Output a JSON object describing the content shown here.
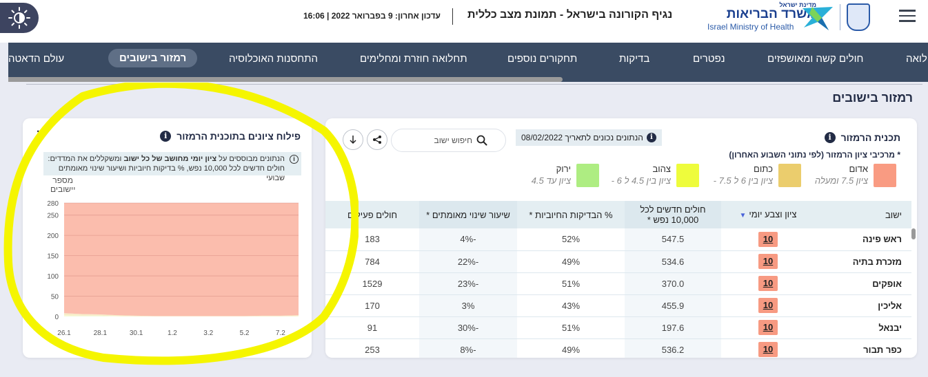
{
  "header": {
    "theme_toggle_icon": "brightness-contrast-icon",
    "last_update": "עדכון אחרון: 9 בפברואר 2022 | 16:06",
    "title": "נגיף הקורונה בישראל - תמונת מצב כללית",
    "logo": {
      "small": "מדינת ישראל",
      "big": "משרד הבריאות",
      "english": "Israel Ministry of Health"
    },
    "menu_icon": "hamburger-menu-icon"
  },
  "nav": {
    "items": [
      {
        "label": "תחלואה",
        "active": false
      },
      {
        "label": "חולים קשה ומאושפזים",
        "active": false
      },
      {
        "label": "נפטרים",
        "active": false
      },
      {
        "label": "בדיקות",
        "active": false
      },
      {
        "label": "תחקורים נוספים",
        "active": false
      },
      {
        "label": "תחלואה חוזרת ומחלימים",
        "active": false
      },
      {
        "label": "התחסנות האוכלוסיה",
        "active": false
      },
      {
        "label": "רמזור בישובים",
        "active": true
      },
      {
        "label": "עולם הדאטה",
        "active": false
      }
    ]
  },
  "section_title": "רמזור בישובים",
  "traffic_card": {
    "title": "תכנית הרמזור",
    "subnote": "* מרכיבי ציון הרמזור (לפי נתוני השבוע האחרון)",
    "date_badge": "הנתונים נכונים לתאריך 08/02/2022",
    "search_placeholder": "חיפוש ישוב",
    "share_icon": "share-icon",
    "download_icon": "download-arrow-icon",
    "legend": [
      {
        "name": "אדום",
        "range": "ציון 7.5 ומעלה",
        "color": "#f99b82"
      },
      {
        "name": "כתום",
        "range": "ציון בין 6 ל 7.5 -",
        "color": "#ebcd6d"
      },
      {
        "name": "צהוב",
        "range": "ציון בין 4.5 ל 6 -",
        "color": "#eefc3c"
      },
      {
        "name": "ירוק",
        "range": "ציון עד 4.5",
        "color": "#aeed82"
      }
    ],
    "table": {
      "headers": {
        "town": "ישוב",
        "score": "ציון וצבע יומי",
        "new_cases_line1": "חולים חדשים לכל",
        "new_cases_line2": "10,000 נפש *",
        "positive": "% הבדיקות החיוביות *",
        "change": "שיעור שינוי מאומתים *",
        "active": "חולים פעילים"
      },
      "rows": [
        {
          "town": "ראש פינה",
          "score": "10",
          "new_cases": "547.5",
          "positive": "52%",
          "change": "-4%",
          "active": "183"
        },
        {
          "town": "מזכרת בתיה",
          "score": "10",
          "new_cases": "534.6",
          "positive": "49%",
          "change": "-22%",
          "active": "784"
        },
        {
          "town": "אופקים",
          "score": "10",
          "new_cases": "370.0",
          "positive": "51%",
          "change": "-23%",
          "active": "1529"
        },
        {
          "town": "אליכין",
          "score": "10",
          "new_cases": "455.9",
          "positive": "43%",
          "change": "3%",
          "active": "170"
        },
        {
          "town": "יבנאל",
          "score": "10",
          "new_cases": "197.6",
          "positive": "51%",
          "change": "-30%",
          "active": "91"
        },
        {
          "town": "כפר תבור",
          "score": "10",
          "new_cases": "536.2",
          "positive": "49%",
          "change": "-8%",
          "active": "253"
        }
      ]
    }
  },
  "distribution_card": {
    "title": "פילוח ציונים בתוכנית הרמזור",
    "menu_icon": "kebab-menu-icon",
    "note_part1": "הנתונים מבוססים על ",
    "note_bold": "ציון יומי מחושב של כל ישוב",
    "note_part2": " ומשקללים את המדדים:",
    "note_line2": "חולים חדשים לכל 10,000 נפש, % בדיקות חיוביות ושיעור שינוי מאומתים שבועי",
    "y_label_line1": "מספר",
    "y_label_line2": "יישובים"
  },
  "chart_data": {
    "type": "area",
    "title": "פילוח ציונים בתוכנית הרמזור",
    "ylabel": "מספר יישובים",
    "xlabel": "",
    "x": [
      "26.1",
      "27.1",
      "28.1",
      "29.1",
      "30.1",
      "31.1",
      "1.2",
      "2.2",
      "3.2",
      "4.2",
      "5.2",
      "6.2",
      "7.2",
      "8.2"
    ],
    "x_tick_labels": [
      "26.1",
      "28.1",
      "30.1",
      "1.2",
      "3.2",
      "5.2",
      "7.2"
    ],
    "yticks": [
      0,
      50,
      100,
      150,
      200,
      250,
      280
    ],
    "ylim": [
      0,
      280
    ],
    "stacked": true,
    "grid": true,
    "series": [
      {
        "name": "ירוק",
        "color": "#aeed82",
        "values": [
          1,
          1,
          1,
          0,
          0,
          0,
          0,
          0,
          0,
          0,
          0,
          0,
          0,
          0
        ]
      },
      {
        "name": "צהוב",
        "color": "#eefc3c",
        "values": [
          2,
          1,
          1,
          1,
          0,
          0,
          0,
          0,
          0,
          0,
          0,
          0,
          0,
          1
        ]
      },
      {
        "name": "כתום",
        "color": "#ebcd6d",
        "values": [
          5,
          4,
          3,
          2,
          2,
          1,
          1,
          1,
          1,
          1,
          1,
          2,
          2,
          2
        ]
      },
      {
        "name": "אדום",
        "color": "#f99b82",
        "values": [
          272,
          274,
          275,
          277,
          278,
          279,
          279,
          279,
          279,
          279,
          279,
          278,
          278,
          277
        ]
      }
    ]
  }
}
